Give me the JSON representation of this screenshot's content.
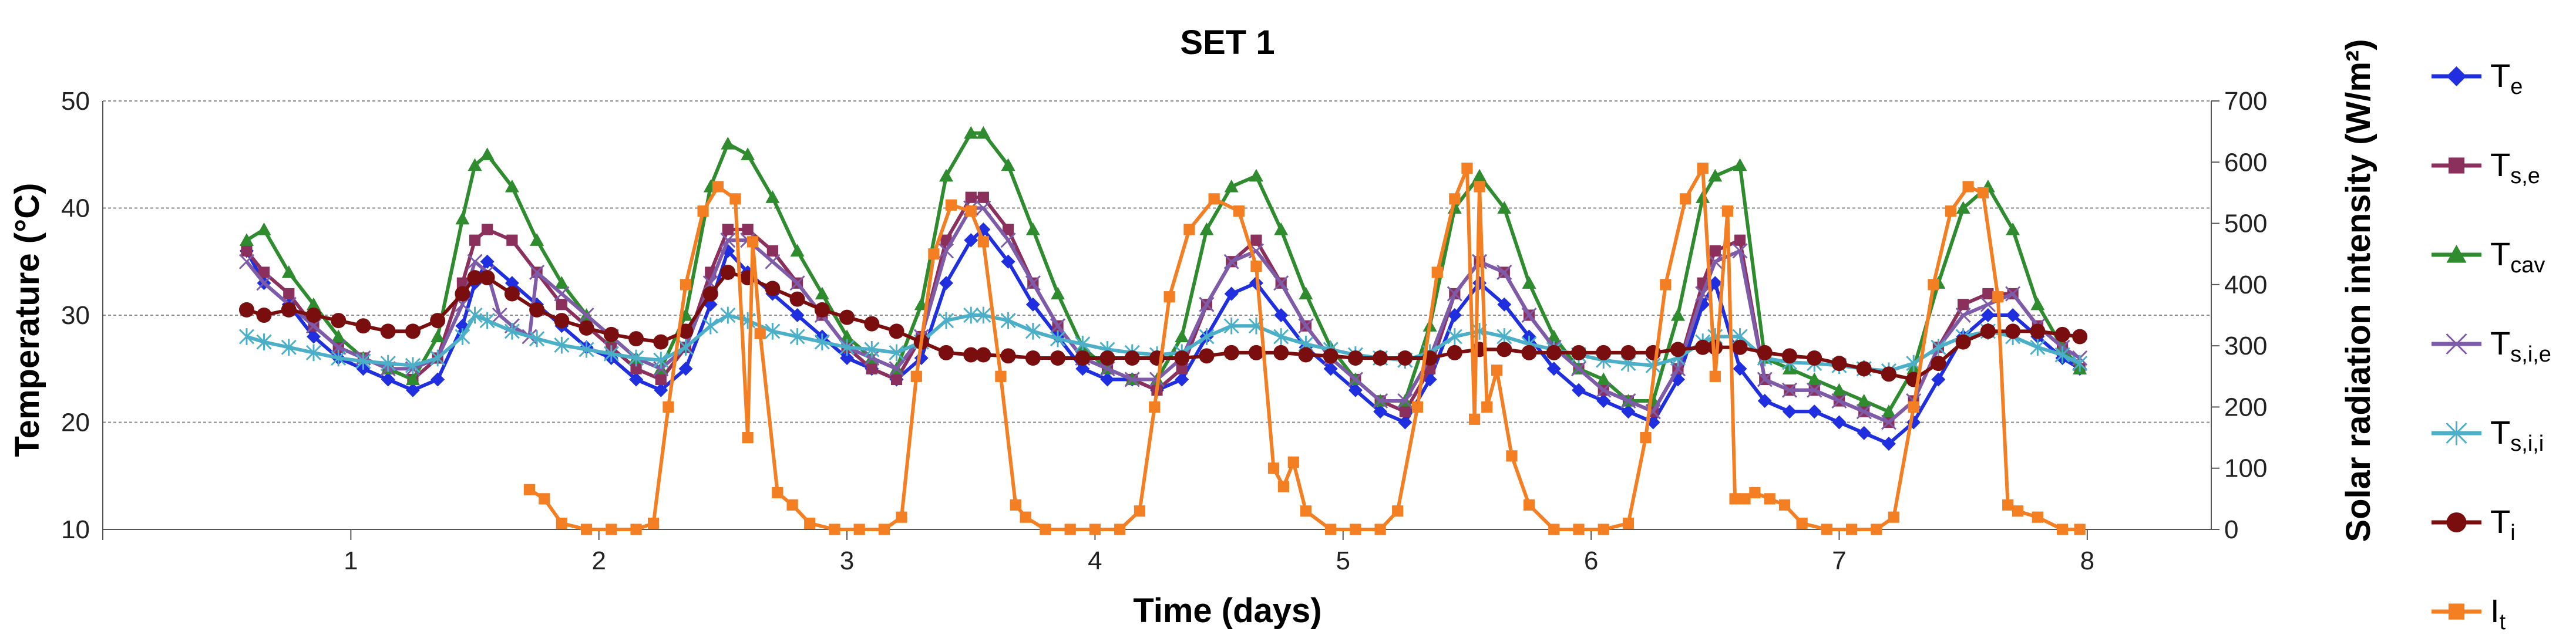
{
  "chart_data": {
    "type": "line",
    "title": "SET 1",
    "xlabel": "Time (days)",
    "ylabel": "Temperature (°C)",
    "y2label": "Solar radiation intensity (W/m²)",
    "xlim": [
      0,
      8.5
    ],
    "ylim": [
      10,
      50
    ],
    "y2lim": [
      0,
      700
    ],
    "x_ticks": [
      1,
      2,
      3,
      4,
      5,
      6,
      7,
      8
    ],
    "x_tick_labels": [
      "1",
      "2",
      "3",
      "4",
      "5",
      "6",
      "7",
      "8"
    ],
    "y_ticks": [
      10,
      20,
      30,
      40,
      50
    ],
    "y_tick_labels": [
      "10",
      "20",
      "30",
      "40",
      "50"
    ],
    "y2_ticks": [
      0,
      100,
      200,
      300,
      400,
      500,
      600,
      700
    ],
    "y2_tick_labels": [
      "0",
      "100",
      "200",
      "300",
      "400",
      "500",
      "600",
      "700"
    ],
    "grid": true,
    "legend_position": "right",
    "series": [
      {
        "name": "Te",
        "label_main": "T",
        "label_sub": "e",
        "color": "#1F2FE0",
        "marker": "diamond",
        "axis": "left",
        "x": [
          0.58,
          0.65,
          0.75,
          0.85,
          0.95,
          1.05,
          1.15,
          1.25,
          1.35,
          1.45,
          1.5,
          1.55,
          1.65,
          1.75,
          1.85,
          1.95,
          2.05,
          2.15,
          2.25,
          2.35,
          2.45,
          2.52,
          2.6,
          2.7,
          2.8,
          2.9,
          3.0,
          3.1,
          3.2,
          3.3,
          3.4,
          3.5,
          3.55,
          3.65,
          3.75,
          3.85,
          3.95,
          4.05,
          4.15,
          4.25,
          4.35,
          4.45,
          4.55,
          4.65,
          4.75,
          4.85,
          4.95,
          5.05,
          5.15,
          5.25,
          5.35,
          5.45,
          5.55,
          5.65,
          5.75,
          5.85,
          5.95,
          6.05,
          6.15,
          6.25,
          6.35,
          6.45,
          6.5,
          6.6,
          6.7,
          6.8,
          6.9,
          7.0,
          7.1,
          7.2,
          7.3,
          7.4,
          7.5,
          7.6,
          7.7,
          7.8,
          7.9,
          7.97
        ],
        "values": [
          36,
          33,
          31,
          28,
          26,
          25,
          24,
          23,
          24,
          29,
          33,
          35,
          33,
          31,
          29,
          27,
          26,
          24,
          23,
          25,
          31,
          36,
          34,
          32,
          30,
          28,
          26,
          25,
          24,
          26,
          33,
          37,
          38,
          35,
          31,
          28,
          25,
          24,
          24,
          23,
          24,
          28,
          32,
          33,
          30,
          27,
          25,
          23,
          21,
          20,
          24,
          30,
          33,
          31,
          28,
          25,
          23,
          22,
          21,
          20,
          24,
          31,
          33,
          25,
          22,
          21,
          21,
          20,
          19,
          18,
          20,
          24,
          28,
          30,
          30,
          28,
          26,
          25
        ]
      },
      {
        "name": "Ts,e",
        "label_main": "T",
        "label_sub": "s,e",
        "color": "#8B2F5C",
        "marker": "square",
        "axis": "left",
        "x": [
          0.58,
          0.65,
          0.75,
          0.85,
          0.95,
          1.05,
          1.15,
          1.25,
          1.35,
          1.45,
          1.5,
          1.55,
          1.65,
          1.75,
          1.85,
          1.95,
          2.05,
          2.15,
          2.25,
          2.35,
          2.45,
          2.52,
          2.6,
          2.7,
          2.8,
          2.9,
          3.0,
          3.1,
          3.2,
          3.3,
          3.4,
          3.5,
          3.55,
          3.65,
          3.75,
          3.85,
          3.95,
          4.05,
          4.15,
          4.25,
          4.35,
          4.45,
          4.55,
          4.65,
          4.75,
          4.85,
          4.95,
          5.05,
          5.15,
          5.25,
          5.35,
          5.45,
          5.55,
          5.65,
          5.75,
          5.85,
          5.95,
          6.05,
          6.15,
          6.25,
          6.35,
          6.45,
          6.5,
          6.6,
          6.7,
          6.8,
          6.9,
          7.0,
          7.1,
          7.2,
          7.3,
          7.4,
          7.5,
          7.6,
          7.7,
          7.8,
          7.9,
          7.97
        ],
        "values": [
          36,
          34,
          32,
          29,
          27,
          26,
          25,
          24,
          26,
          33,
          37,
          38,
          37,
          34,
          31,
          29,
          27,
          25,
          24,
          27,
          34,
          38,
          38,
          36,
          33,
          30,
          27,
          25,
          24,
          28,
          37,
          41,
          41,
          38,
          33,
          29,
          26,
          25,
          24,
          23,
          25,
          31,
          35,
          37,
          33,
          29,
          26,
          24,
          22,
          21,
          25,
          32,
          35,
          34,
          30,
          27,
          25,
          23,
          22,
          21,
          25,
          33,
          36,
          37,
          24,
          23,
          23,
          22,
          21,
          20,
          22,
          27,
          31,
          32,
          32,
          29,
          27,
          25
        ]
      },
      {
        "name": "Tcav",
        "label_main": "T",
        "label_sub": "cav",
        "color": "#2E8B2E",
        "marker": "triangle",
        "axis": "left",
        "x": [
          0.58,
          0.65,
          0.75,
          0.85,
          0.95,
          1.05,
          1.15,
          1.25,
          1.35,
          1.45,
          1.5,
          1.55,
          1.65,
          1.75,
          1.85,
          1.95,
          2.05,
          2.15,
          2.25,
          2.35,
          2.45,
          2.52,
          2.6,
          2.7,
          2.8,
          2.9,
          3.0,
          3.1,
          3.2,
          3.3,
          3.4,
          3.5,
          3.55,
          3.65,
          3.75,
          3.85,
          3.95,
          4.05,
          4.15,
          4.25,
          4.35,
          4.45,
          4.55,
          4.65,
          4.75,
          4.85,
          4.95,
          5.05,
          5.15,
          5.25,
          5.35,
          5.45,
          5.55,
          5.65,
          5.75,
          5.85,
          5.95,
          6.05,
          6.15,
          6.25,
          6.35,
          6.45,
          6.5,
          6.6,
          6.7,
          6.8,
          6.9,
          7.0,
          7.1,
          7.2,
          7.3,
          7.4,
          7.5,
          7.6,
          7.7,
          7.8,
          7.9,
          7.97
        ],
        "values": [
          37,
          38,
          34,
          31,
          28,
          26,
          25,
          24,
          28,
          39,
          44,
          45,
          42,
          37,
          33,
          30,
          28,
          26,
          25,
          30,
          42,
          46,
          45,
          41,
          36,
          32,
          28,
          26,
          25,
          31,
          43,
          47,
          47,
          44,
          38,
          32,
          27,
          25,
          24,
          24,
          28,
          38,
          42,
          43,
          38,
          32,
          27,
          24,
          22,
          22,
          29,
          40,
          43,
          40,
          33,
          28,
          25,
          24,
          22,
          22,
          30,
          41,
          43,
          44,
          26,
          25,
          24,
          23,
          22,
          21,
          25,
          33,
          40,
          42,
          38,
          31,
          27,
          25
        ]
      },
      {
        "name": "Ts,i,e",
        "label_main": "T",
        "label_sub": "s,i,e",
        "color": "#7E5BA8",
        "marker": "x",
        "axis": "left",
        "x": [
          0.58,
          0.65,
          0.75,
          0.85,
          0.95,
          1.05,
          1.15,
          1.25,
          1.35,
          1.45,
          1.5,
          1.55,
          1.6,
          1.65,
          1.72,
          1.75,
          1.85,
          1.95,
          2.05,
          2.15,
          2.25,
          2.35,
          2.45,
          2.52,
          2.6,
          2.7,
          2.8,
          2.9,
          3.0,
          3.1,
          3.2,
          3.3,
          3.4,
          3.5,
          3.55,
          3.65,
          3.75,
          3.85,
          3.95,
          4.05,
          4.15,
          4.25,
          4.35,
          4.45,
          4.55,
          4.65,
          4.75,
          4.85,
          4.95,
          5.05,
          5.15,
          5.25,
          5.35,
          5.45,
          5.55,
          5.65,
          5.75,
          5.85,
          5.95,
          6.05,
          6.15,
          6.25,
          6.35,
          6.45,
          6.5,
          6.6,
          6.7,
          6.8,
          6.9,
          7.0,
          7.1,
          7.2,
          7.3,
          7.4,
          7.5,
          7.6,
          7.7,
          7.8,
          7.9,
          7.97
        ],
        "values": [
          35,
          33,
          31,
          29,
          27,
          26,
          25,
          25,
          26,
          31,
          35,
          34,
          30,
          29,
          28,
          34,
          32,
          30,
          28,
          26,
          25,
          27,
          33,
          37,
          37,
          35,
          33,
          30,
          27,
          26,
          25,
          28,
          36,
          40,
          40,
          37,
          33,
          29,
          26,
          25,
          24,
          24,
          26,
          31,
          35,
          36,
          33,
          29,
          26,
          24,
          22,
          22,
          26,
          32,
          35,
          34,
          30,
          27,
          25,
          23,
          22,
          21,
          25,
          32,
          35,
          36,
          24,
          23,
          23,
          22,
          21,
          20,
          22,
          27,
          30,
          31,
          32,
          29,
          27,
          26
        ]
      },
      {
        "name": "Ts,i,i",
        "label_main": "T",
        "label_sub": "s,i,i",
        "color": "#4BAFC8",
        "marker": "star",
        "axis": "left",
        "x": [
          0.58,
          0.65,
          0.75,
          0.85,
          0.95,
          1.05,
          1.15,
          1.25,
          1.35,
          1.45,
          1.5,
          1.55,
          1.65,
          1.75,
          1.85,
          1.95,
          2.05,
          2.15,
          2.25,
          2.35,
          2.45,
          2.52,
          2.6,
          2.7,
          2.8,
          2.9,
          3.0,
          3.1,
          3.2,
          3.3,
          3.4,
          3.5,
          3.55,
          3.65,
          3.75,
          3.85,
          3.95,
          4.05,
          4.15,
          4.25,
          4.35,
          4.45,
          4.55,
          4.65,
          4.75,
          4.85,
          4.95,
          5.05,
          5.15,
          5.25,
          5.35,
          5.45,
          5.55,
          5.65,
          5.75,
          5.85,
          5.95,
          6.05,
          6.15,
          6.25,
          6.35,
          6.45,
          6.5,
          6.6,
          6.7,
          6.8,
          6.9,
          7.0,
          7.1,
          7.2,
          7.3,
          7.4,
          7.5,
          7.6,
          7.7,
          7.8,
          7.9,
          7.97
        ],
        "values": [
          28,
          27.5,
          27,
          26.5,
          26,
          25.7,
          25.5,
          25.3,
          26,
          28,
          30,
          29.5,
          28.5,
          27.8,
          27.2,
          26.8,
          26.4,
          26,
          25.8,
          27,
          29,
          30,
          29.5,
          28.5,
          28,
          27.5,
          27,
          26.8,
          26.5,
          27.5,
          29.5,
          30,
          30,
          29.5,
          28.5,
          27.8,
          27.3,
          26.8,
          26.5,
          26.3,
          26.5,
          28,
          29,
          29,
          28,
          27.3,
          26.8,
          26.3,
          26,
          25.8,
          26.5,
          28,
          28.5,
          28,
          27.3,
          26.8,
          26.3,
          25.8,
          25.5,
          25.3,
          26,
          27.5,
          28,
          28,
          26,
          25.6,
          25.5,
          25.3,
          25,
          24.8,
          25.5,
          27,
          28,
          28.5,
          28,
          27,
          26.3,
          25.5
        ]
      },
      {
        "name": "Ti",
        "label_main": "T",
        "label_sub": "i",
        "color": "#7A0E0E",
        "marker": "circle",
        "axis": "left",
        "x": [
          0.58,
          0.65,
          0.75,
          0.85,
          0.95,
          1.05,
          1.15,
          1.25,
          1.35,
          1.45,
          1.5,
          1.55,
          1.65,
          1.75,
          1.85,
          1.95,
          2.05,
          2.15,
          2.25,
          2.35,
          2.45,
          2.52,
          2.6,
          2.7,
          2.8,
          2.9,
          3.0,
          3.1,
          3.2,
          3.3,
          3.4,
          3.5,
          3.55,
          3.65,
          3.75,
          3.85,
          3.95,
          4.05,
          4.15,
          4.25,
          4.35,
          4.45,
          4.55,
          4.65,
          4.75,
          4.85,
          4.95,
          5.05,
          5.15,
          5.25,
          5.35,
          5.45,
          5.55,
          5.65,
          5.75,
          5.85,
          5.95,
          6.05,
          6.15,
          6.25,
          6.35,
          6.45,
          6.5,
          6.6,
          6.7,
          6.8,
          6.9,
          7.0,
          7.1,
          7.2,
          7.3,
          7.4,
          7.5,
          7.6,
          7.7,
          7.8,
          7.9,
          7.97
        ],
        "values": [
          30.5,
          30,
          30.5,
          30,
          29.5,
          29,
          28.5,
          28.5,
          29.5,
          32,
          33.5,
          33.5,
          32,
          30.5,
          29.5,
          28.8,
          28.2,
          27.8,
          27.5,
          28.5,
          32,
          34,
          33.5,
          32.5,
          31.5,
          30.5,
          29.8,
          29.2,
          28.5,
          27.5,
          26.5,
          26.3,
          26.3,
          26.2,
          26,
          26,
          26,
          26,
          26,
          26,
          26,
          26.2,
          26.5,
          26.5,
          26.5,
          26.3,
          26.2,
          26,
          26,
          26,
          26,
          26.5,
          26.8,
          26.8,
          26.5,
          26.5,
          26.5,
          26.5,
          26.5,
          26.5,
          26.8,
          27,
          27,
          27,
          26.5,
          26.2,
          26,
          25.5,
          25,
          24.5,
          24,
          25.5,
          27.5,
          28.5,
          28.5,
          28.5,
          28.2,
          28
        ]
      },
      {
        "name": "It",
        "label_main": "I",
        "label_sub": "t",
        "color": "#F47E22",
        "marker": "square",
        "axis": "right",
        "x": [
          1.72,
          1.78,
          1.85,
          1.95,
          2.05,
          2.15,
          2.22,
          2.28,
          2.35,
          2.42,
          2.48,
          2.55,
          2.6,
          2.62,
          2.65,
          2.72,
          2.78,
          2.85,
          2.95,
          3.05,
          3.15,
          3.22,
          3.28,
          3.35,
          3.42,
          3.5,
          3.55,
          3.62,
          3.68,
          3.72,
          3.8,
          3.9,
          4.0,
          4.1,
          4.18,
          4.24,
          4.3,
          4.38,
          4.48,
          4.58,
          4.65,
          4.72,
          4.76,
          4.8,
          4.85,
          4.95,
          5.05,
          5.15,
          5.22,
          5.3,
          5.38,
          5.45,
          5.5,
          5.53,
          5.55,
          5.58,
          5.62,
          5.68,
          5.75,
          5.85,
          5.95,
          6.05,
          6.15,
          6.22,
          6.3,
          6.38,
          6.45,
          6.5,
          6.55,
          6.58,
          6.62,
          6.66,
          6.72,
          6.78,
          6.85,
          6.95,
          7.05,
          7.15,
          7.22,
          7.3,
          7.38,
          7.45,
          7.52,
          7.58,
          7.64,
          7.68,
          7.72,
          7.8,
          7.9,
          7.97
        ],
        "values": [
          65,
          50,
          10,
          0,
          0,
          0,
          10,
          200,
          400,
          520,
          560,
          540,
          150,
          470,
          320,
          60,
          40,
          10,
          0,
          0,
          0,
          20,
          250,
          450,
          530,
          520,
          470,
          250,
          40,
          20,
          0,
          0,
          0,
          0,
          30,
          200,
          380,
          490,
          540,
          520,
          430,
          100,
          70,
          110,
          30,
          0,
          0,
          0,
          30,
          200,
          420,
          540,
          590,
          180,
          560,
          200,
          260,
          120,
          40,
          0,
          0,
          0,
          10,
          150,
          400,
          540,
          590,
          250,
          520,
          50,
          50,
          60,
          50,
          40,
          10,
          0,
          0,
          0,
          20,
          200,
          400,
          520,
          560,
          550,
          380,
          40,
          30,
          20,
          0,
          0
        ]
      }
    ]
  }
}
